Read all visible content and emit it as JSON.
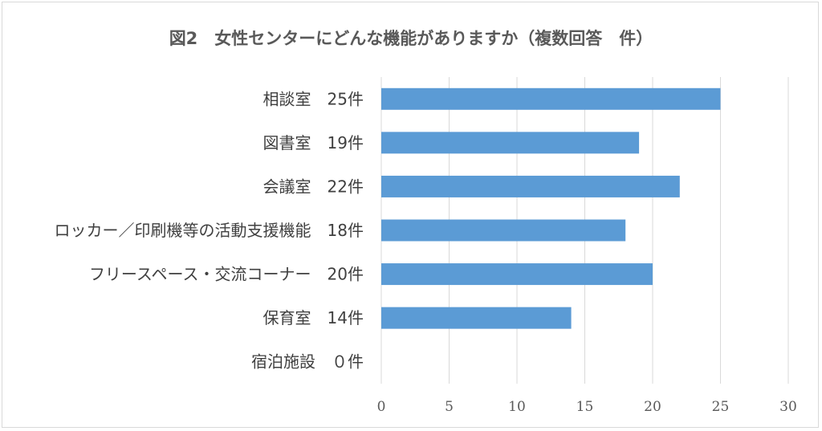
{
  "chart_data": {
    "type": "bar",
    "orientation": "horizontal",
    "title": "図2　女性センターにどんな機能がありますか（複数回答　件）",
    "categories": [
      "相談室　25件",
      "図書室　19件",
      "会議室　22件",
      "ロッカー／印刷機等の活動支援機能　18件",
      "フリースペース・交流コーナー　20件",
      "保育室　14件",
      "宿泊施設　０件"
    ],
    "values": [
      25,
      19,
      22,
      18,
      20,
      14,
      0
    ],
    "xlim": [
      0,
      30
    ],
    "xticks": [
      "0",
      "5",
      "10",
      "15",
      "20",
      "25",
      "30"
    ],
    "grid": true,
    "legend": "none",
    "bar_color": "#5B9BD5",
    "grid_color": "#d9d9d9"
  }
}
